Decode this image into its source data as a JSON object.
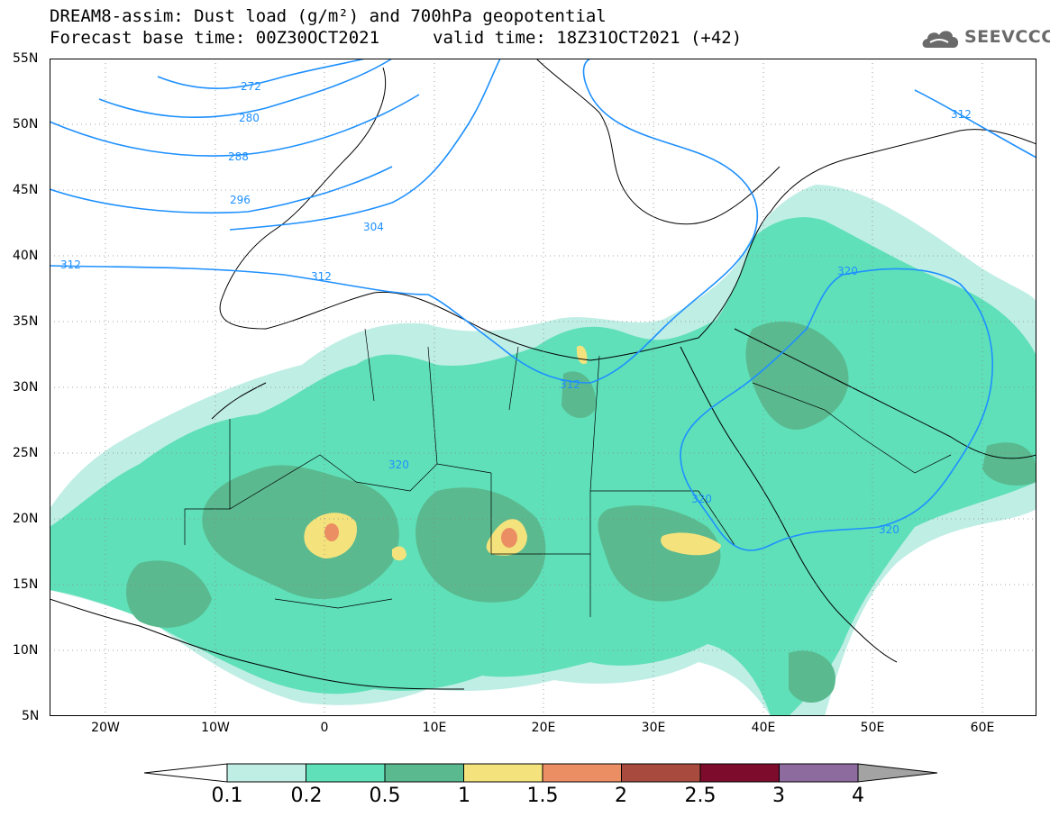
{
  "title": {
    "line1": "DREAM8-assim: Dust load (g/m²) and 700hPa geopotential",
    "line2": "Forecast base time: 00Z30OCT2021",
    "line2b": "valid time: 18Z31OCT2021 (+42)"
  },
  "logo": {
    "text": "SEEVCCC",
    "icon": "cloud-logo-icon"
  },
  "axes": {
    "lat_labels": [
      "55N",
      "50N",
      "45N",
      "40N",
      "35N",
      "30N",
      "25N",
      "20N",
      "15N",
      "10N",
      "5N"
    ],
    "lon_labels": [
      "20W",
      "10W",
      "0",
      "10E",
      "20E",
      "30E",
      "40E",
      "50E",
      "60E"
    ]
  },
  "contours": [
    "272",
    "280",
    "288",
    "296",
    "304",
    "312",
    "312",
    "312",
    "320",
    "320",
    "320",
    "320",
    "312"
  ],
  "colorbar": {
    "labels": [
      "0.1",
      "0.2",
      "0.5",
      "1",
      "1.5",
      "2",
      "2.5",
      "3",
      "4"
    ],
    "colors": [
      "#bfeee4",
      "#5fe0b8",
      "#5ab98f",
      "#f4e37c",
      "#eb8e63",
      "#a84a3e",
      "#7d0b2c",
      "#8e6b9e",
      "#a3a3a3"
    ]
  },
  "colors": {
    "dust_light": "#bfeee4",
    "dust_mid": "#5fe0b8",
    "dust_dark": "#5ab98f",
    "dust_yellow": "#f4e37c",
    "dust_orange": "#eb8e63",
    "contour": "#1e90ff"
  }
}
